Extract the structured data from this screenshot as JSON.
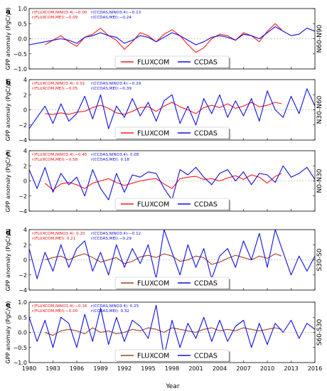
{
  "colors": {
    "ccdas": "#1010e0",
    "fluxcom_red": "#ff1a1a",
    "fluxcom_brown": "#a0421c",
    "corr_red": "#e01010",
    "corr_blue": "#1010d0"
  },
  "figure": {
    "x_axis_title": "Year",
    "y_axis_title": "GPP anomaly (PgC/yr)",
    "x_ticks": [
      1980,
      1983,
      1986,
      1989,
      1992,
      1995,
      1998,
      2001,
      2004,
      2007,
      2010,
      2013,
      2016
    ],
    "x_tick_labels": [
      "1980",
      "1983",
      "1986",
      "1989",
      "1992",
      "1995",
      "1998",
      "2001",
      "2004",
      "2007",
      "2010",
      "2013",
      "2016"
    ]
  },
  "chart_data": [
    {
      "type": "line",
      "panel_label": "a",
      "region": "N60-N90",
      "xlim": [
        1980,
        2016
      ],
      "ylim": [
        -1.0,
        1.0
      ],
      "yticks": [
        -1.0,
        -0.5,
        0.0,
        0.5,
        1.0
      ],
      "ytick_labels": [
        "−1.0",
        "−0.5",
        "0.0",
        "0.5",
        "1.0"
      ],
      "correlations": {
        "fluxcom_nino": "r(FLUXCOM,NINO3.4):−0.00",
        "fluxcom_mei": "r(FLUXCOM,MEI):−0.09",
        "ccdas_nino": "r(CCDAS,NINO3.4):−0.13",
        "ccdas_mei": "r(CCDAS,MEI):−0.24"
      },
      "legend": [
        "FLUXCOM",
        "CCDAS"
      ],
      "fluxcom_color": "red",
      "series": [
        {
          "name": "FLUXCOM",
          "x": [
            1982.0,
            1983.0,
            1984.0,
            1985.0,
            1986.0,
            1987.0,
            1988.0,
            1989.0,
            1990.0,
            1991.0,
            1992.0,
            1993.0,
            1994.0,
            1995.0,
            1996.0,
            1997.0,
            1998.0,
            1999.0,
            2000.0,
            2001.0,
            2002.0,
            2003.0,
            2004.0,
            2005.0,
            2006.0,
            2007.0,
            2008.0,
            2009.0,
            2010.0,
            2011.0,
            2011.8
          ],
          "values": [
            -0.2,
            -0.05,
            0.1,
            -0.1,
            -0.25,
            0.05,
            0.15,
            0.35,
            0.1,
            -0.05,
            -0.35,
            -0.1,
            0.2,
            0.1,
            -0.1,
            0.15,
            0.3,
            0.1,
            -0.2,
            -0.45,
            -0.3,
            0.0,
            0.15,
            0.1,
            -0.05,
            0.2,
            0.1,
            -0.1,
            0.25,
            0.5,
            0.3
          ]
        },
        {
          "name": "CCDAS",
          "x": [
            1980.0,
            1981.0,
            1982.0,
            1983.0,
            1984.0,
            1985.0,
            1986.0,
            1987.0,
            1988.0,
            1989.0,
            1990.0,
            1991.0,
            1992.0,
            1993.0,
            1994.0,
            1995.0,
            1996.0,
            1997.0,
            1998.0,
            1999.0,
            2000.0,
            2001.0,
            2002.0,
            2003.0,
            2004.0,
            2005.0,
            2006.0,
            2007.0,
            2008.0,
            2009.0,
            2010.0,
            2011.0,
            2012.0,
            2013.0,
            2014.0,
            2015.0,
            2016.0
          ],
          "values": [
            -0.2,
            -0.15,
            -0.1,
            -0.05,
            0.0,
            -0.05,
            -0.15,
            0.05,
            0.1,
            0.2,
            0.1,
            0.05,
            -0.15,
            -0.05,
            0.1,
            0.05,
            -0.1,
            0.05,
            0.2,
            0.1,
            -0.05,
            -0.2,
            -0.1,
            0.05,
            0.1,
            0.05,
            -0.05,
            0.15,
            0.1,
            0.0,
            0.2,
            0.4,
            0.25,
            0.1,
            0.15,
            0.35,
            0.25
          ]
        }
      ]
    },
    {
      "type": "line",
      "panel_label": "b",
      "region": "N30-N60",
      "xlim": [
        1980,
        2016
      ],
      "ylim": [
        -4,
        4
      ],
      "yticks": [
        -4,
        -2,
        0,
        2,
        4
      ],
      "ytick_labels": [
        "−4",
        "−2",
        "0",
        "2",
        "4"
      ],
      "correlations": {
        "fluxcom_nino": "r(FLUXCOM,NINO3.4): 0.01",
        "fluxcom_mei": "r(FLUXCOM,MEI):−0.05",
        "ccdas_nino": "r(CCDAS,NINO3.4):−0.29",
        "ccdas_mei": "r(CCDAS,MEI):−0.39"
      },
      "legend": [
        "FLUXCOM",
        "CCDAS"
      ],
      "fluxcom_color": "red",
      "series": [
        {
          "name": "FLUXCOM",
          "x": [
            1982.0,
            1983.0,
            1984.0,
            1985.0,
            1986.0,
            1987.0,
            1988.0,
            1989.0,
            1990.0,
            1991.0,
            1992.0,
            1993.0,
            1994.0,
            1995.0,
            1996.0,
            1997.0,
            1998.0,
            1999.0,
            2000.0,
            2001.0,
            2002.0,
            2003.0,
            2004.0,
            2005.0,
            2006.0,
            2007.0,
            2008.0,
            2009.0,
            2010.0,
            2011.0,
            2011.8
          ],
          "values": [
            -0.5,
            -0.6,
            -0.4,
            -0.6,
            -0.3,
            -0.2,
            0.3,
            0.6,
            0.2,
            -0.4,
            -0.6,
            -0.2,
            0.3,
            0.4,
            -0.2,
            0.5,
            1.0,
            0.4,
            0.0,
            -0.5,
            0.3,
            0.6,
            0.3,
            0.8,
            0.2,
            0.5,
            1.0,
            0.4,
            0.6,
            1.0,
            0.8
          ]
        },
        {
          "name": "CCDAS",
          "x": [
            1980.0,
            1981.0,
            1982.0,
            1983.0,
            1984.0,
            1985.0,
            1986.0,
            1987.0,
            1988.0,
            1989.0,
            1990.0,
            1991.0,
            1992.0,
            1993.0,
            1994.0,
            1995.0,
            1996.0,
            1997.0,
            1998.0,
            1999.0,
            2000.0,
            2001.0,
            2002.0,
            2003.0,
            2004.0,
            2005.0,
            2006.0,
            2007.0,
            2008.0,
            2009.0,
            2010.0,
            2011.0,
            2012.0,
            2013.0,
            2014.0,
            2015.0,
            2016.0
          ],
          "values": [
            -2.5,
            -1.0,
            0.5,
            -1.8,
            0.8,
            -1.5,
            -0.5,
            1.8,
            -1.2,
            2.0,
            -2.5,
            0.5,
            -1.0,
            1.5,
            -0.8,
            1.0,
            -1.5,
            1.2,
            2.0,
            -1.8,
            0.5,
            -2.0,
            1.5,
            -0.5,
            2.0,
            -1.0,
            1.2,
            -0.8,
            1.5,
            -1.5,
            2.5,
            0.0,
            -1.0,
            1.8,
            -0.5,
            2.8,
            0.5
          ]
        }
      ]
    },
    {
      "type": "line",
      "panel_label": "c",
      "region": "N0-N30",
      "xlim": [
        1980,
        2016
      ],
      "ylim": [
        -4,
        4
      ],
      "yticks": [
        -4,
        -2,
        0,
        2,
        4
      ],
      "ytick_labels": [
        "−4",
        "−2",
        "0",
        "2",
        "4"
      ],
      "correlations": {
        "fluxcom_nino": "r(FLUXCOM,NINO3.4):−0.45",
        "fluxcom_mei": "r(FLUXCOM,MEI):−0.58",
        "ccdas_nino": "r(CCDAS,NINO3.4): 0.08",
        "ccdas_mei": "r(CCDAS,MEI): 0.18"
      },
      "legend": [
        "FLUXCOM",
        "CCDAS"
      ],
      "fluxcom_color": "red",
      "series": [
        {
          "name": "FLUXCOM",
          "x": [
            1982.0,
            1983.0,
            1984.0,
            1985.0,
            1986.0,
            1987.0,
            1988.0,
            1989.0,
            1990.0,
            1991.0,
            1992.0,
            1993.0,
            1994.0,
            1995.0,
            1996.0,
            1997.0,
            1998.0,
            1999.0,
            2000.0,
            2001.0,
            2002.0,
            2003.0,
            2004.0,
            2005.0,
            2006.0,
            2007.0,
            2008.0,
            2009.0,
            2010.0,
            2011.0,
            2011.8
          ],
          "values": [
            -0.3,
            -1.2,
            -0.4,
            -0.2,
            -0.5,
            -1.0,
            -0.3,
            0.0,
            0.3,
            -0.2,
            -0.6,
            -0.3,
            0.0,
            0.2,
            0.3,
            -0.4,
            -1.0,
            0.3,
            0.5,
            0.6,
            0.2,
            0.3,
            0.0,
            0.4,
            0.7,
            0.2,
            0.8,
            0.5,
            -0.3,
            0.6,
            1.0
          ]
        },
        {
          "name": "CCDAS",
          "x": [
            1980.0,
            1981.0,
            1982.0,
            1983.0,
            1984.0,
            1985.0,
            1986.0,
            1987.0,
            1988.0,
            1989.0,
            1990.0,
            1991.0,
            1992.0,
            1993.0,
            1994.0,
            1995.0,
            1996.0,
            1997.0,
            1998.0,
            1999.0,
            2000.0,
            2001.0,
            2002.0,
            2003.0,
            2004.0,
            2005.0,
            2006.0,
            2007.0,
            2008.0,
            2009.0,
            2010.0,
            2011.0,
            2012.0,
            2013.0,
            2014.0,
            2015.0,
            2016.0
          ],
          "values": [
            1.5,
            -1.0,
            1.8,
            -1.5,
            1.0,
            -0.5,
            0.5,
            -2.0,
            1.5,
            -1.0,
            -2.5,
            1.0,
            -1.5,
            0.8,
            0.5,
            1.2,
            1.0,
            -1.0,
            -2.5,
            1.5,
            0.8,
            1.8,
            0.5,
            -0.5,
            1.0,
            1.5,
            0.0,
            1.2,
            -0.5,
            1.0,
            0.8,
            -0.2,
            2.0,
            0.5,
            1.0,
            1.8,
            0.2
          ]
        }
      ]
    },
    {
      "type": "line",
      "panel_label": "d",
      "region": "S30-S0",
      "xlim": [
        1980,
        2016
      ],
      "ylim": [
        -4,
        4
      ],
      "yticks": [
        -4,
        -2,
        0,
        2,
        4
      ],
      "ytick_labels": [
        "−4",
        "−2",
        "0",
        "2",
        "4"
      ],
      "correlations": {
        "fluxcom_nino": "r(FLUXCOM,NINO3.4): 0.20",
        "fluxcom_mei": "r(FLUXCOM,MEI): 0.21",
        "ccdas_nino": "r(CCDAS,NINO3.4):−0.12",
        "ccdas_mei": "r(CCDAS,MEI):−0.29"
      },
      "legend": [
        "FLUXCOM",
        "CCDAS"
      ],
      "fluxcom_color": "brown",
      "series": [
        {
          "name": "FLUXCOM",
          "x": [
            1982.0,
            1983.0,
            1984.0,
            1985.0,
            1986.0,
            1987.0,
            1988.0,
            1989.0,
            1990.0,
            1991.0,
            1992.0,
            1993.0,
            1994.0,
            1995.0,
            1996.0,
            1997.0,
            1998.0,
            1999.0,
            2000.0,
            2001.0,
            2002.0,
            2003.0,
            2004.0,
            2005.0,
            2006.0,
            2007.0,
            2008.0,
            2009.0,
            2010.0,
            2011.0,
            2011.8
          ],
          "values": [
            0.0,
            0.3,
            0.5,
            0.0,
            0.5,
            0.8,
            0.3,
            -0.3,
            0.0,
            0.3,
            -0.5,
            -0.2,
            0.4,
            0.6,
            0.3,
            0.8,
            0.5,
            -0.2,
            0.0,
            0.5,
            0.3,
            -0.6,
            -0.3,
            0.2,
            0.6,
            0.3,
            0.0,
            0.5,
            0.2,
            0.8,
            0.5
          ]
        },
        {
          "name": "CCDAS",
          "x": [
            1980.0,
            1981.0,
            1982.0,
            1983.0,
            1984.0,
            1985.0,
            1986.0,
            1987.0,
            1988.0,
            1989.0,
            1990.0,
            1991.0,
            1992.0,
            1993.0,
            1994.0,
            1995.0,
            1996.0,
            1997.0,
            1998.0,
            1999.0,
            2000.0,
            2001.0,
            2002.0,
            2003.0,
            2004.0,
            2005.0,
            2006.0,
            2007.0,
            2008.0,
            2009.0,
            2010.0,
            2011.0,
            2012.0,
            2013.0,
            2014.0,
            2015.0,
            2016.0
          ],
          "values": [
            1.5,
            -2.5,
            1.0,
            -1.5,
            2.0,
            -1.0,
            1.5,
            2.5,
            -1.5,
            1.0,
            -2.0,
            2.0,
            -1.0,
            1.5,
            -0.5,
            2.0,
            -2.5,
            4.0,
            1.0,
            -2.0,
            2.0,
            -1.0,
            1.5,
            -2.5,
            0.5,
            1.5,
            -1.0,
            2.5,
            0.0,
            3.5,
            -1.0,
            4.0,
            1.0,
            -2.0,
            0.5,
            -1.5,
            0.5
          ]
        }
      ]
    },
    {
      "type": "line",
      "panel_label": "e",
      "region": "S60-S30",
      "xlim": [
        1980,
        2016
      ],
      "ylim": [
        -1.0,
        1.0
      ],
      "yticks": [
        -1.0,
        -0.5,
        0.0,
        0.5,
        1.0
      ],
      "ytick_labels": [
        "−1.0",
        "−0.5",
        "0.0",
        "0.5",
        "1.0"
      ],
      "correlations": {
        "fluxcom_nino": "r(FLUXCOM,NINO3.4):−0.16",
        "fluxcom_mei": "r(FLUXCOM,MEI):−0.00",
        "ccdas_nino": "r(CCDAS,NINO3.4): 0.25",
        "ccdas_mei": "r(CCDAS,MEI): 0.32"
      },
      "legend": [
        "FLUXCOM",
        "CCDAS"
      ],
      "fluxcom_color": "brown",
      "series": [
        {
          "name": "FLUXCOM",
          "x": [
            1982.0,
            1983.0,
            1984.0,
            1985.0,
            1986.0,
            1987.0,
            1988.0,
            1989.0,
            1990.0,
            1991.0,
            1992.0,
            1993.0,
            1994.0,
            1995.0,
            1996.0,
            1997.0,
            1998.0,
            1999.0,
            2000.0,
            2001.0,
            2002.0,
            2003.0,
            2004.0,
            2005.0,
            2006.0,
            2007.0,
            2008.0,
            2009.0,
            2010.0,
            2011.0,
            2011.8
          ],
          "values": [
            0.0,
            -0.1,
            0.05,
            0.1,
            0.05,
            -0.05,
            0.15,
            0.0,
            0.05,
            -0.05,
            0.0,
            0.1,
            0.05,
            0.15,
            0.1,
            0.0,
            0.15,
            0.1,
            0.05,
            0.0,
            0.1,
            0.15,
            0.05,
            0.1,
            0.05,
            0.15,
            0.1,
            0.05,
            0.1,
            0.15,
            0.1
          ]
        },
        {
          "name": "CCDAS",
          "x": [
            1980.0,
            1981.0,
            1982.0,
            1983.0,
            1984.0,
            1985.0,
            1986.0,
            1987.0,
            1988.0,
            1989.0,
            1990.0,
            1991.0,
            1992.0,
            1993.0,
            1994.0,
            1995.0,
            1996.0,
            1997.0,
            1998.0,
            1999.0,
            2000.0,
            2001.0,
            2002.0,
            2003.0,
            2004.0,
            2005.0,
            2006.0,
            2007.0,
            2008.0,
            2009.0,
            2010.0,
            2011.0,
            2012.0,
            2013.0,
            2014.0,
            2015.0,
            2016.0
          ],
          "values": [
            0.5,
            -0.3,
            0.4,
            -0.5,
            0.5,
            0.3,
            -0.5,
            0.6,
            -0.3,
            0.8,
            -0.4,
            0.5,
            -0.3,
            0.4,
            0.2,
            -0.2,
            0.9,
            -0.8,
            0.4,
            -0.5,
            0.3,
            -0.2,
            0.5,
            -0.3,
            0.4,
            -0.3,
            0.2,
            0.4,
            -0.5,
            0.3,
            -0.4,
            0.3,
            0.0,
            0.4,
            -0.2,
            0.3,
            0.1
          ]
        }
      ]
    }
  ]
}
